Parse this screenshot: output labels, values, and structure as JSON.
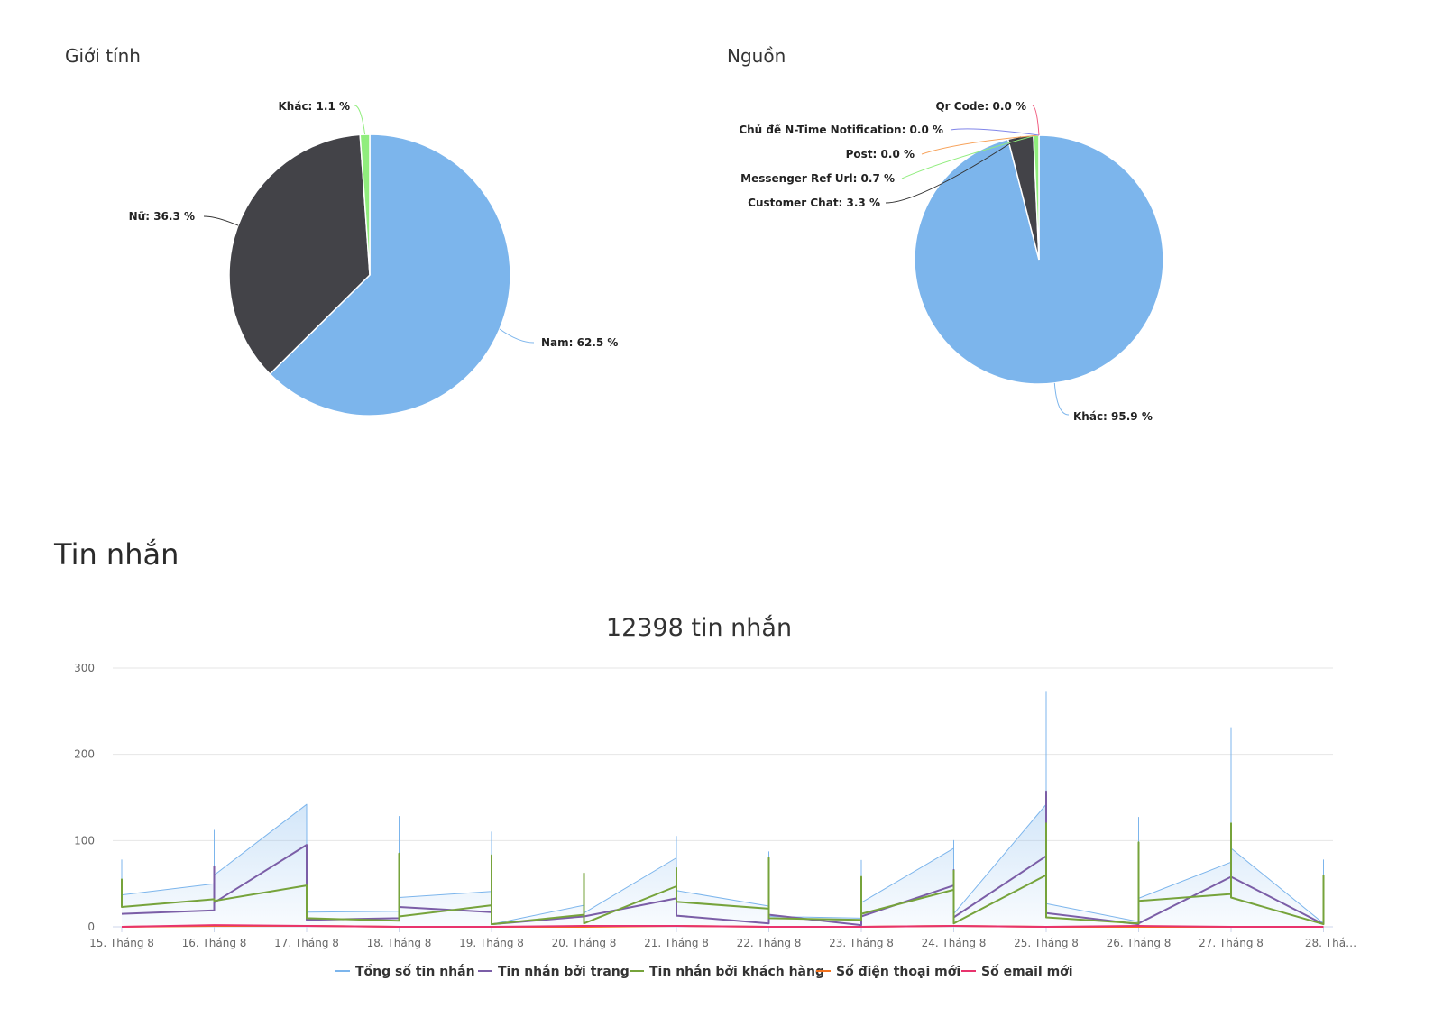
{
  "gender_panel": {
    "title": "Giới tính"
  },
  "source_panel": {
    "title": "Nguồn"
  },
  "messages_section": {
    "title": "Tin nhắn"
  },
  "colors": {
    "blue": "#7cb5ec",
    "dark": "#434348",
    "green": "#90ed7d",
    "orange": "#f7a35c",
    "purple": "#8085e9",
    "pink": "#f15c80",
    "series_blue": "#7cb5ec",
    "series_purple": "#7b5ea7",
    "series_green": "#76a33b",
    "series_orange": "#f2711c",
    "series_pink": "#e8336d"
  },
  "chart_data": [
    {
      "type": "pie",
      "title": "Giới tính",
      "slices": [
        {
          "name": "Nam",
          "value": 62.5,
          "label": "Nam: 62.5 %",
          "color": "#7cb5ec"
        },
        {
          "name": "Nữ",
          "value": 36.3,
          "label": "Nữ: 36.3 %",
          "color": "#434348"
        },
        {
          "name": "Khác",
          "value": 1.1,
          "label": "Khác: 1.1 %",
          "color": "#90ed7d"
        }
      ]
    },
    {
      "type": "pie",
      "title": "Nguồn",
      "slices": [
        {
          "name": "Khác",
          "value": 95.9,
          "label": "Khác: 95.9 %",
          "color": "#7cb5ec"
        },
        {
          "name": "Customer Chat",
          "value": 3.3,
          "label": "Customer Chat: 3.3 %",
          "color": "#434348"
        },
        {
          "name": "Messenger Ref Url",
          "value": 0.7,
          "label": "Messenger Ref Url: 0.7 %",
          "color": "#90ed7d"
        },
        {
          "name": "Post",
          "value": 0.0,
          "label": "Post: 0.0 %",
          "color": "#f7a35c"
        },
        {
          "name": "Chủ đề N-Time Notification",
          "value": 0.0,
          "label": "Chủ đề N-Time Notification: 0.0 %",
          "color": "#8085e9"
        },
        {
          "name": "Qr Code",
          "value": 0.0,
          "label": "Qr Code: 0.0 %",
          "color": "#f15c80"
        }
      ]
    },
    {
      "type": "line",
      "title": "12398 tin nhắn",
      "categories": [
        "15. Tháng 8",
        "16. Tháng 8",
        "17. Tháng 8",
        "18. Tháng 8",
        "19. Tháng 8",
        "20. Tháng 8",
        "21. Tháng 8",
        "22. Tháng 8",
        "23. Tháng 8",
        "24. Tháng 8",
        "25. Tháng 8",
        "26. Tháng 8",
        "27. Tháng 8",
        "28. Thá…"
      ],
      "ylim": [
        0,
        300
      ],
      "yticks": [
        0,
        100,
        200,
        300
      ],
      "grid": true,
      "legend": "bottom",
      "series": [
        {
          "name": "Tổng số tin nhắn",
          "color": "#7cb5ec",
          "area": true,
          "points": [
            [
              0,
              78
            ],
            [
              0,
              37
            ],
            [
              1,
              50
            ],
            [
              1,
              112
            ],
            [
              1,
              60
            ],
            [
              2,
              142
            ],
            [
              2,
              17
            ],
            [
              3,
              18
            ],
            [
              3,
              128
            ],
            [
              3,
              34
            ],
            [
              4,
              41
            ],
            [
              4,
              110
            ],
            [
              4,
              3
            ],
            [
              5,
              25
            ],
            [
              5,
              82
            ],
            [
              5,
              16
            ],
            [
              6,
              80
            ],
            [
              6,
              105
            ],
            [
              6,
              42
            ],
            [
              7,
              24
            ],
            [
              7,
              87
            ],
            [
              7,
              12
            ],
            [
              8,
              10
            ],
            [
              8,
              77
            ],
            [
              8,
              28
            ],
            [
              9,
              91
            ],
            [
              9,
              100
            ],
            [
              9,
              15
            ],
            [
              10,
              142
            ],
            [
              10,
              273
            ],
            [
              10,
              27
            ],
            [
              11,
              6
            ],
            [
              11,
              127
            ],
            [
              11,
              33
            ],
            [
              12,
              75
            ],
            [
              12,
              231
            ],
            [
              12,
              91
            ],
            [
              13,
              4
            ],
            [
              13,
              78
            ]
          ]
        },
        {
          "name": "Tin nhắn bởi trang",
          "color": "#7b5ea7",
          "area": false,
          "points": [
            [
              0,
              15
            ],
            [
              1,
              19
            ],
            [
              1,
              70
            ],
            [
              1,
              28
            ],
            [
              2,
              95
            ],
            [
              2,
              8
            ],
            [
              3,
              10
            ],
            [
              3,
              23
            ],
            [
              4,
              17
            ],
            [
              4,
              3
            ],
            [
              5,
              12
            ],
            [
              6,
              33
            ],
            [
              6,
              13
            ],
            [
              7,
              4
            ],
            [
              7,
              14
            ],
            [
              8,
              2
            ],
            [
              8,
              12
            ],
            [
              9,
              48
            ],
            [
              9,
              66
            ],
            [
              9,
              11
            ],
            [
              10,
              82
            ],
            [
              10,
              157
            ],
            [
              10,
              16
            ],
            [
              11,
              3
            ],
            [
              11,
              4
            ],
            [
              12,
              58
            ],
            [
              13,
              3
            ]
          ]
        },
        {
          "name": "Tin nhắn bởi khách hàng",
          "color": "#76a33b",
          "area": false,
          "points": [
            [
              0,
              24
            ],
            [
              0,
              55
            ],
            [
              0,
              23
            ],
            [
              1,
              32
            ],
            [
              1,
              30
            ],
            [
              2,
              48
            ],
            [
              2,
              10
            ],
            [
              3,
              7
            ],
            [
              3,
              85
            ],
            [
              3,
              12
            ],
            [
              4,
              25
            ],
            [
              4,
              83
            ],
            [
              4,
              3
            ],
            [
              5,
              14
            ],
            [
              5,
              62
            ],
            [
              5,
              4
            ],
            [
              6,
              47
            ],
            [
              6,
              68
            ],
            [
              6,
              29
            ],
            [
              7,
              21
            ],
            [
              7,
              80
            ],
            [
              7,
              10
            ],
            [
              8,
              8
            ],
            [
              8,
              58
            ],
            [
              8,
              15
            ],
            [
              9,
              43
            ],
            [
              9,
              65
            ],
            [
              9,
              4
            ],
            [
              10,
              60
            ],
            [
              10,
              120
            ],
            [
              10,
              11
            ],
            [
              11,
              4
            ],
            [
              11,
              98
            ],
            [
              11,
              30
            ],
            [
              12,
              38
            ],
            [
              12,
              120
            ],
            [
              12,
              34
            ],
            [
              13,
              3
            ],
            [
              13,
              60
            ]
          ]
        },
        {
          "name": "Số điện thoại mới",
          "color": "#f2711c",
          "area": false,
          "points": [
            [
              0,
              0
            ],
            [
              1,
              1
            ],
            [
              2,
              1
            ],
            [
              3,
              0
            ],
            [
              4,
              0
            ],
            [
              5,
              0
            ],
            [
              6,
              1
            ],
            [
              7,
              0
            ],
            [
              8,
              0
            ],
            [
              9,
              1
            ],
            [
              10,
              0
            ],
            [
              11,
              0
            ],
            [
              12,
              0
            ],
            [
              13,
              0
            ]
          ]
        },
        {
          "name": "Số email mới",
          "color": "#e8336d",
          "area": false,
          "points": [
            [
              0,
              0
            ],
            [
              1,
              2
            ],
            [
              2,
              1
            ],
            [
              3,
              0
            ],
            [
              4,
              0
            ],
            [
              5,
              1
            ],
            [
              6,
              1
            ],
            [
              7,
              0
            ],
            [
              8,
              0
            ],
            [
              9,
              1
            ],
            [
              10,
              0
            ],
            [
              11,
              1
            ],
            [
              12,
              0
            ],
            [
              13,
              0
            ]
          ]
        }
      ]
    }
  ]
}
